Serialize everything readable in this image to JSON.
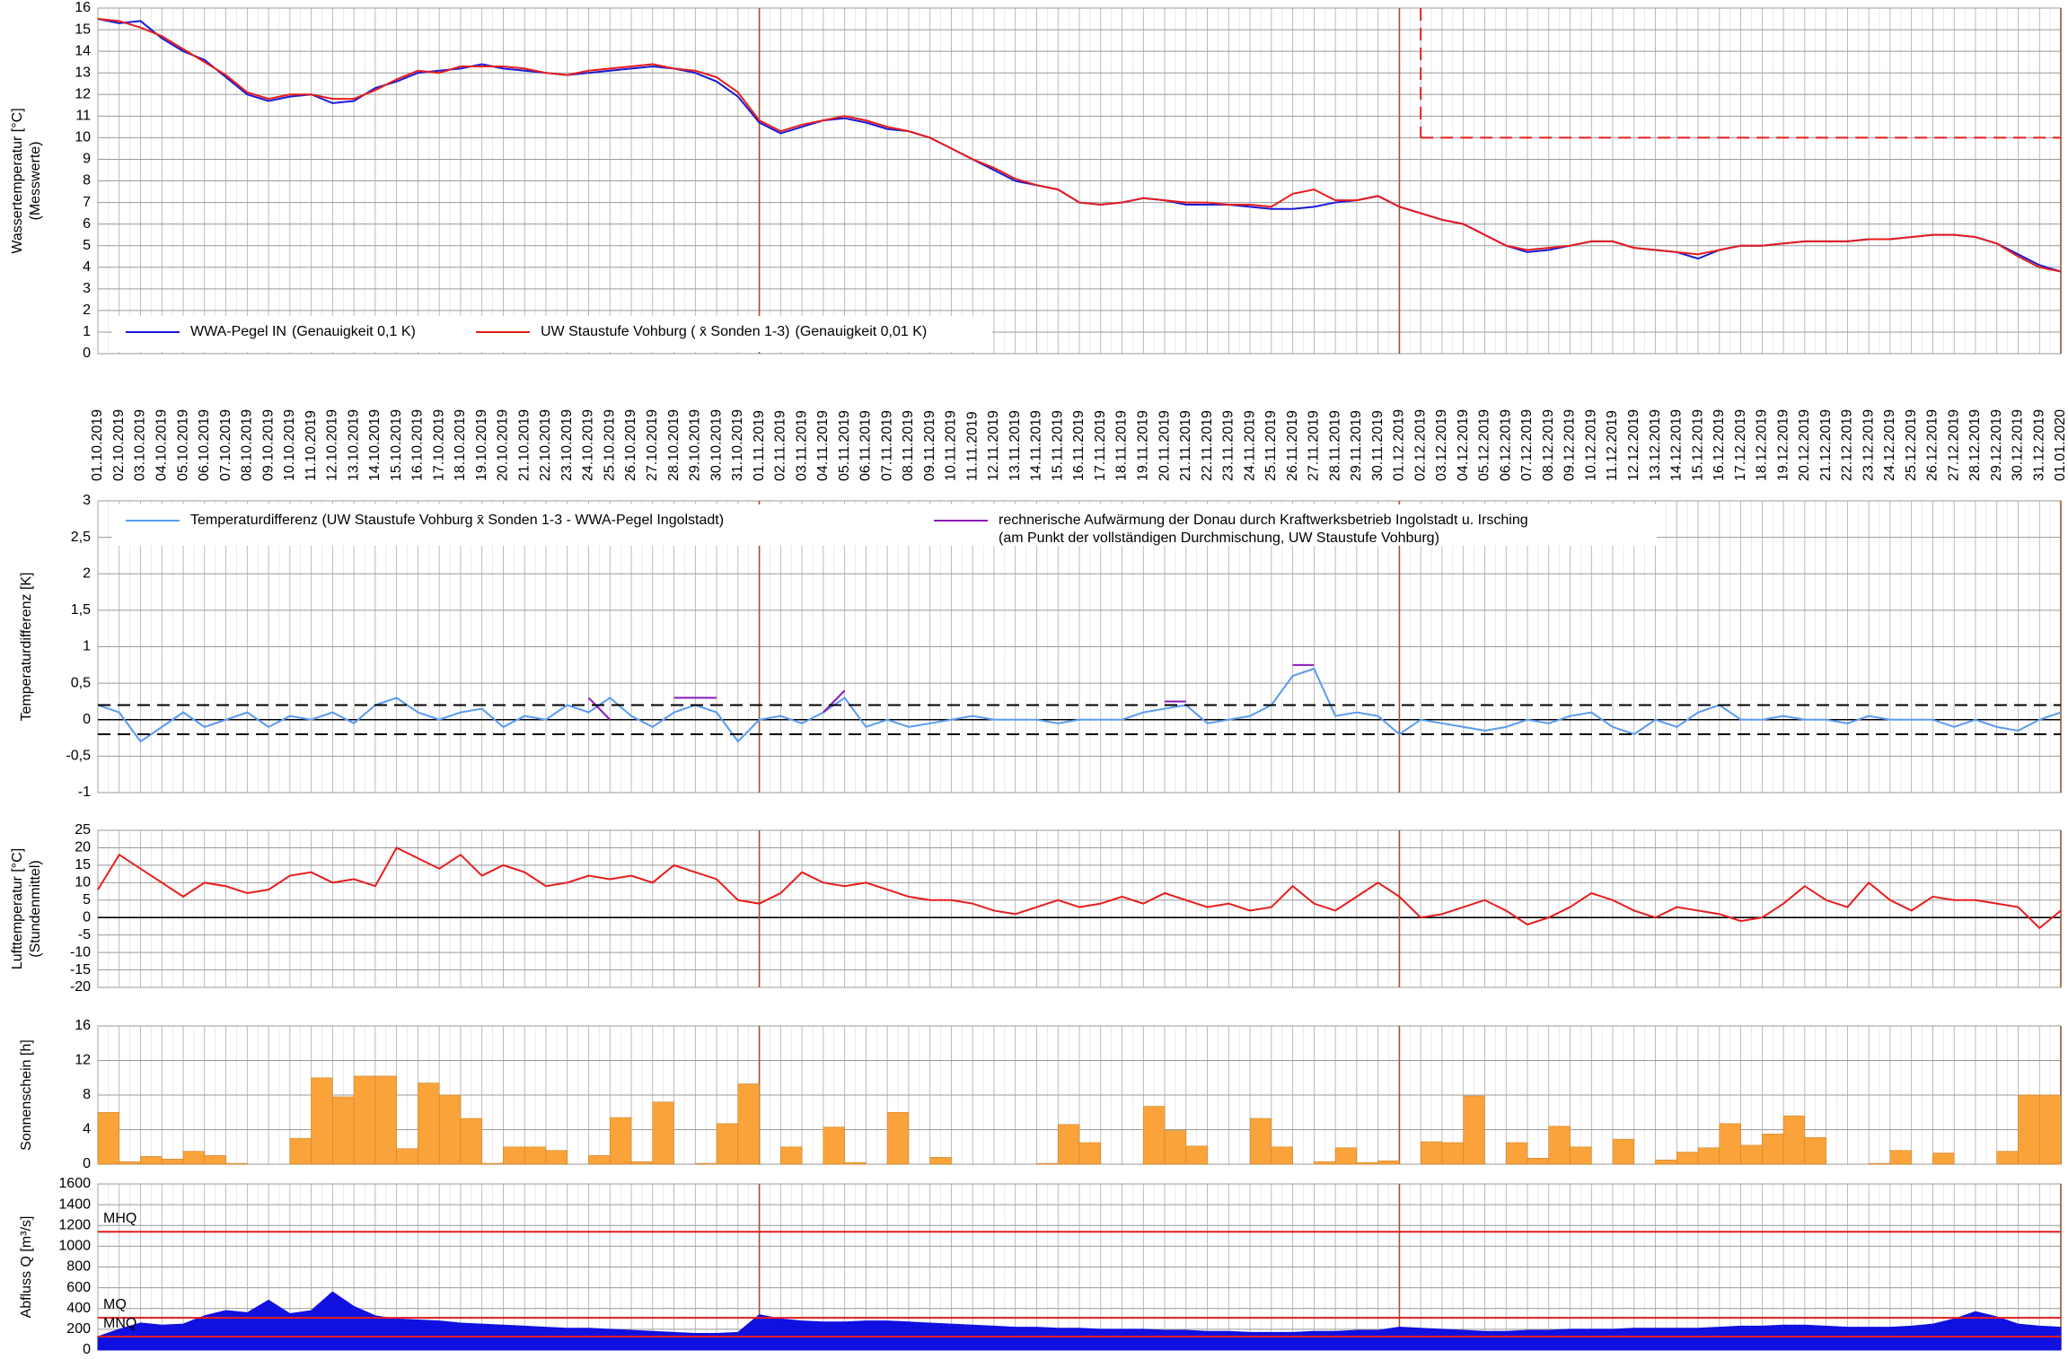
{
  "chart_data": [
    {
      "type": "line",
      "ylabel": "Wassertemperatur [°C]",
      "ylabel_note": "(Messwerte)",
      "categories": [
        "01.10.2019",
        "02.10.2019",
        "03.10.2019",
        "04.10.2019",
        "05.10.2019",
        "06.10.2019",
        "07.10.2019",
        "08.10.2019",
        "09.10.2019",
        "10.10.2019",
        "11.10.2019",
        "12.10.2019",
        "13.10.2019",
        "14.10.2019",
        "15.10.2019",
        "16.10.2019",
        "17.10.2019",
        "18.10.2019",
        "19.10.2019",
        "20.10.2019",
        "21.10.2019",
        "22.10.2019",
        "23.10.2019",
        "24.10.2019",
        "25.10.2019",
        "26.10.2019",
        "27.10.2019",
        "28.10.2019",
        "29.10.2019",
        "30.10.2019",
        "31.10.2019",
        "01.11.2019",
        "02.11.2019",
        "03.11.2019",
        "04.11.2019",
        "05.11.2019",
        "06.11.2019",
        "07.11.2019",
        "08.11.2019",
        "09.11.2019",
        "10.11.2019",
        "11.11.2019",
        "12.11.2019",
        "13.11.2019",
        "14.11.2019",
        "15.11.2019",
        "16.11.2019",
        "17.11.2019",
        "18.11.2019",
        "19.11.2019",
        "20.11.2019",
        "21.11.2019",
        "22.11.2019",
        "23.11.2019",
        "24.11.2019",
        "25.11.2019",
        "26.11.2019",
        "27.11.2019",
        "28.11.2019",
        "29.11.2019",
        "30.11.2019",
        "01.12.2019",
        "02.12.2019",
        "03.12.2019",
        "04.12.2019",
        "05.12.2019",
        "06.12.2019",
        "07.12.2019",
        "08.12.2019",
        "09.12.2019",
        "10.12.2019",
        "11.12.2019",
        "12.12.2019",
        "13.12.2019",
        "14.12.2019",
        "15.12.2019",
        "16.12.2019",
        "17.12.2019",
        "18.12.2019",
        "19.12.2019",
        "20.12.2019",
        "21.12.2019",
        "22.12.2019",
        "23.12.2019",
        "24.12.2019",
        "25.12.2019",
        "26.12.2019",
        "27.12.2019",
        "28.12.2019",
        "29.12.2019",
        "30.12.2019",
        "31.12.2019",
        "01.01.2020"
      ],
      "series": [
        {
          "name": "WWA-Pegel IN",
          "note": "(Genauigkeit 0,1 K)",
          "color": "#1a1ad6",
          "values": [
            15.5,
            15.3,
            15.4,
            14.6,
            14.0,
            13.6,
            12.8,
            12.0,
            11.7,
            11.9,
            12.0,
            11.6,
            11.7,
            12.3,
            12.6,
            13.0,
            13.1,
            13.2,
            13.4,
            13.2,
            13.1,
            13.0,
            12.9,
            13.0,
            13.1,
            13.2,
            13.3,
            13.2,
            13.0,
            12.6,
            11.9,
            10.7,
            10.2,
            10.5,
            10.8,
            10.9,
            10.7,
            10.4,
            10.3,
            10.0,
            9.5,
            9.0,
            8.5,
            8.0,
            7.8,
            7.6,
            7.0,
            6.9,
            7.0,
            7.2,
            7.1,
            6.9,
            6.9,
            6.9,
            6.8,
            6.7,
            6.7,
            6.8,
            7.0,
            7.1,
            7.3,
            6.8,
            6.5,
            6.2,
            6.0,
            5.5,
            5.0,
            4.7,
            4.8,
            5.0,
            5.2,
            5.2,
            4.9,
            4.8,
            4.7,
            4.4,
            4.8,
            5.0,
            5.0,
            5.1,
            5.2,
            5.2,
            5.2,
            5.3,
            5.3,
            5.4,
            5.5,
            5.5,
            5.4,
            5.1,
            4.6,
            4.1,
            3.8
          ]
        },
        {
          "name": "UW Staustufe Vohburg ( x̄ Sonden 1-3)",
          "note": "(Genauigkeit 0,01 K)",
          "color": "#e81c1c",
          "values": [
            15.5,
            15.4,
            15.1,
            14.7,
            14.1,
            13.5,
            12.9,
            12.1,
            11.8,
            12.0,
            12.0,
            11.8,
            11.8,
            12.2,
            12.7,
            13.1,
            13.0,
            13.3,
            13.3,
            13.3,
            13.2,
            13.0,
            12.9,
            13.1,
            13.2,
            13.3,
            13.4,
            13.2,
            13.1,
            12.8,
            12.1,
            10.8,
            10.3,
            10.6,
            10.8,
            11.0,
            10.8,
            10.5,
            10.3,
            10.0,
            9.5,
            9.0,
            8.6,
            8.1,
            7.8,
            7.6,
            7.0,
            6.9,
            7.0,
            7.2,
            7.1,
            7.0,
            7.0,
            6.9,
            6.9,
            6.8,
            7.4,
            7.6,
            7.1,
            7.1,
            7.3,
            6.8,
            6.5,
            6.2,
            6.0,
            5.5,
            5.0,
            4.8,
            4.9,
            5.0,
            5.2,
            5.2,
            4.9,
            4.8,
            4.7,
            4.6,
            4.8,
            5.0,
            5.0,
            5.1,
            5.2,
            5.2,
            5.2,
            5.3,
            5.3,
            5.4,
            5.5,
            5.5,
            5.4,
            5.1,
            4.5,
            4.0,
            3.8
          ]
        }
      ],
      "reference_lines": [
        {
          "value": 10,
          "x_start": "02.12.2019",
          "color": "#e81c1c",
          "dashed": true
        }
      ],
      "ylim": [
        0,
        16
      ],
      "yticks": [
        0,
        1,
        2,
        3,
        4,
        5,
        6,
        7,
        8,
        9,
        10,
        11,
        12,
        13,
        14,
        15,
        16
      ],
      "grid": true
    },
    {
      "type": "line",
      "ylabel": "Temperaturdifferenz [K]",
      "series": [
        {
          "name": "Temperaturdifferenz (UW Staustufe Vohburg  x̄ Sonden 1-3 - WWA-Pegel Ingolstadt)",
          "color": "#5b9bf0",
          "values": [
            0.2,
            0.1,
            -0.3,
            -0.1,
            0.1,
            -0.1,
            0.0,
            0.1,
            -0.1,
            0.05,
            0.0,
            0.1,
            -0.05,
            0.2,
            0.3,
            0.1,
            0.0,
            0.1,
            0.15,
            -0.1,
            0.05,
            0.0,
            0.2,
            0.1,
            0.3,
            0.05,
            -0.1,
            0.1,
            0.2,
            0.1,
            -0.3,
            0.0,
            0.05,
            -0.05,
            0.1,
            0.3,
            -0.1,
            0.0,
            -0.1,
            -0.05,
            0.0,
            0.05,
            0.0,
            0.0,
            0.0,
            -0.05,
            0.0,
            0.0,
            0.0,
            0.1,
            0.15,
            0.2,
            -0.05,
            0.0,
            0.05,
            0.2,
            0.6,
            0.7,
            0.05,
            0.1,
            0.05,
            -0.2,
            0.0,
            -0.05,
            -0.1,
            -0.15,
            -0.1,
            0.0,
            -0.05,
            0.05,
            0.1,
            -0.1,
            -0.2,
            0.0,
            -0.1,
            0.1,
            0.2,
            0.0,
            0.0,
            0.05,
            0.0,
            0.0,
            -0.05,
            0.05,
            0.0,
            0.0,
            0.0,
            -0.1,
            0.0,
            -0.1,
            -0.15,
            0.0,
            0.1
          ]
        },
        {
          "name": "rechnerische Aufwärmung der Donau durch Kraftwerksbetrieb Ingolstadt u. Irsching",
          "note": "(am Punkt der vollständigen Durchmischung, UW Staustufe Vohburg)",
          "color": "#8a1ab8",
          "values": [
            null,
            null,
            null,
            null,
            null,
            null,
            null,
            null,
            null,
            null,
            null,
            null,
            null,
            null,
            null,
            null,
            null,
            null,
            null,
            null,
            null,
            null,
            null,
            0.3,
            0.0,
            null,
            null,
            0.3,
            0.3,
            0.3,
            null,
            null,
            null,
            null,
            0.1,
            0.4,
            null,
            null,
            null,
            null,
            null,
            null,
            null,
            null,
            null,
            null,
            null,
            null,
            null,
            null,
            0.25,
            0.25,
            null,
            null,
            null,
            null,
            0.75,
            0.75,
            null,
            null,
            null,
            null,
            null,
            null,
            null,
            null,
            null,
            null,
            null,
            null,
            null,
            null,
            null,
            null,
            null,
            null,
            null,
            null,
            null,
            null,
            null,
            null,
            null,
            null,
            null,
            null,
            null,
            null,
            null,
            null,
            null,
            null,
            null
          ]
        }
      ],
      "reference_lines": [
        {
          "value": 0.2,
          "color": "#000000",
          "dashed": true
        },
        {
          "value": -0.2,
          "color": "#000000",
          "dashed": true
        }
      ],
      "ylim": [
        -1,
        3
      ],
      "yticks": [
        -1,
        {
          "value": -0.5,
          "label": "-0,5"
        },
        0,
        {
          "value": 0.5,
          "label": "0,5"
        },
        1,
        {
          "value": 1.5,
          "label": "1,5"
        },
        2,
        {
          "value": 2.5,
          "label": "2,5"
        },
        3
      ],
      "grid": true
    },
    {
      "type": "line",
      "ylabel": "Lufttemperatur [°C]",
      "ylabel_note": "(Stundenmittel)",
      "series": [
        {
          "color": "#e81c1c",
          "values": [
            8,
            18,
            14,
            10,
            6,
            10,
            9,
            7,
            8,
            12,
            13,
            10,
            11,
            9,
            20,
            17,
            14,
            18,
            12,
            15,
            13,
            9,
            10,
            12,
            11,
            12,
            10,
            15,
            13,
            11,
            5,
            4,
            7,
            13,
            10,
            9,
            10,
            8,
            6,
            5,
            5,
            4,
            2,
            1,
            3,
            5,
            3,
            4,
            6,
            4,
            7,
            5,
            3,
            4,
            2,
            3,
            9,
            4,
            2,
            6,
            10,
            6,
            0,
            1,
            3,
            5,
            2,
            -2,
            0,
            3,
            7,
            5,
            2,
            0,
            3,
            2,
            1,
            -1,
            0,
            4,
            9,
            5,
            3,
            10,
            5,
            2,
            6,
            5,
            5,
            4,
            3,
            -3,
            2
          ]
        }
      ],
      "ylim": [
        -20,
        25
      ],
      "yticks": [
        -20,
        -15,
        -10,
        -5,
        0,
        5,
        10,
        15,
        20,
        25
      ],
      "grid": true
    },
    {
      "type": "bar",
      "ylabel": "Sonnenschein [h]",
      "series": [
        {
          "color": "#f9a33a",
          "values": [
            6.0,
            0.3,
            0.9,
            0.6,
            1.5,
            1.0,
            0.1,
            0,
            0,
            3.0,
            10.0,
            7.8,
            10.2,
            10.2,
            1.8,
            9.4,
            8.0,
            5.3,
            0.1,
            2.0,
            2.0,
            1.6,
            0,
            1.0,
            5.4,
            0.3,
            7.2,
            0,
            0.1,
            4.7,
            9.3,
            0,
            2.0,
            0,
            4.3,
            0.2,
            0,
            6.0,
            0,
            0.8,
            0,
            0,
            0,
            0,
            0.1,
            4.6,
            2.5,
            0,
            0,
            6.7,
            3.9,
            2.1,
            0,
            0,
            5.3,
            2.0,
            0,
            0.3,
            1.9,
            0.2,
            0.4,
            0,
            2.6,
            2.5,
            7.9,
            0,
            2.5,
            0.7,
            4.4,
            2.0,
            0,
            2.9,
            0,
            0.5,
            1.4,
            1.9,
            4.7,
            2.2,
            3.5,
            5.6,
            3.1,
            0,
            0,
            0.1,
            1.6,
            0,
            1.3,
            0,
            0,
            1.5,
            8.0,
            8.0,
            null
          ]
        }
      ],
      "ylim": [
        0,
        16
      ],
      "yticks": [
        0,
        4,
        8,
        12,
        16
      ],
      "grid": true
    },
    {
      "type": "area",
      "ylabel": "Abfluss Q [m³/s]",
      "series": [
        {
          "color": "#1010e0",
          "values": [
            130,
            200,
            260,
            240,
            250,
            330,
            380,
            360,
            480,
            350,
            380,
            560,
            420,
            330,
            300,
            290,
            280,
            260,
            250,
            240,
            230,
            220,
            210,
            210,
            200,
            190,
            180,
            170,
            160,
            160,
            170,
            340,
            300,
            280,
            270,
            270,
            280,
            280,
            270,
            260,
            250,
            240,
            230,
            220,
            220,
            210,
            210,
            200,
            200,
            200,
            190,
            190,
            180,
            180,
            170,
            170,
            170,
            180,
            180,
            190,
            190,
            220,
            210,
            200,
            190,
            180,
            180,
            190,
            190,
            200,
            200,
            200,
            210,
            210,
            210,
            210,
            220,
            230,
            230,
            240,
            240,
            230,
            220,
            220,
            220,
            230,
            250,
            300,
            370,
            320,
            250,
            230,
            220
          ]
        }
      ],
      "reference_lines": [
        {
          "value": 1140,
          "label": "MHQ",
          "color": "#e81c1c"
        },
        {
          "value": 310,
          "label": "MQ",
          "color": "#e81c1c"
        },
        {
          "value": 130,
          "label": "MNQ",
          "color": "#e81c1c"
        }
      ],
      "ylim": [
        0,
        1600
      ],
      "yticks": [
        0,
        200,
        400,
        600,
        800,
        1000,
        1200,
        1400,
        1600
      ],
      "grid": true
    }
  ]
}
